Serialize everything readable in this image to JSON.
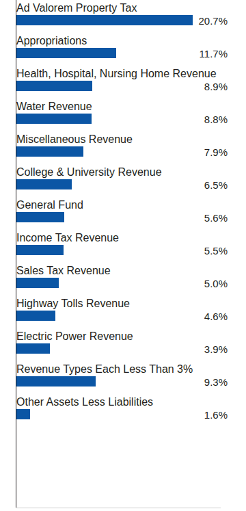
{
  "chart_data": {
    "type": "bar",
    "orientation": "horizontal",
    "categories": [
      "Ad Valorem Property Tax",
      "Appropriations",
      "Health, Hospital, Nursing Home Revenue",
      "Water Revenue",
      "Miscellaneous Revenue",
      "College & University Revenue",
      "General Fund",
      "Income Tax Revenue",
      "Sales Tax Revenue",
      "Highway Tolls Revenue",
      "Electric Power Revenue",
      "Revenue Types Each Less Than 3%",
      "Other Assets Less Liabilities"
    ],
    "values": [
      20.7,
      11.7,
      8.9,
      8.8,
      7.9,
      6.5,
      5.6,
      5.5,
      5.0,
      4.6,
      3.9,
      9.3,
      1.6
    ],
    "value_labels": [
      "20.7%",
      "11.7%",
      "8.9%",
      "8.8%",
      "7.9%",
      "6.5%",
      "5.6%",
      "5.5%",
      "5.0%",
      "4.6%",
      "3.9%",
      "9.3%",
      "1.6%"
    ],
    "color": "#0b56a5",
    "xlim": [
      0,
      24
    ],
    "data_labels": true,
    "tick_labels": false,
    "grid": false
  }
}
